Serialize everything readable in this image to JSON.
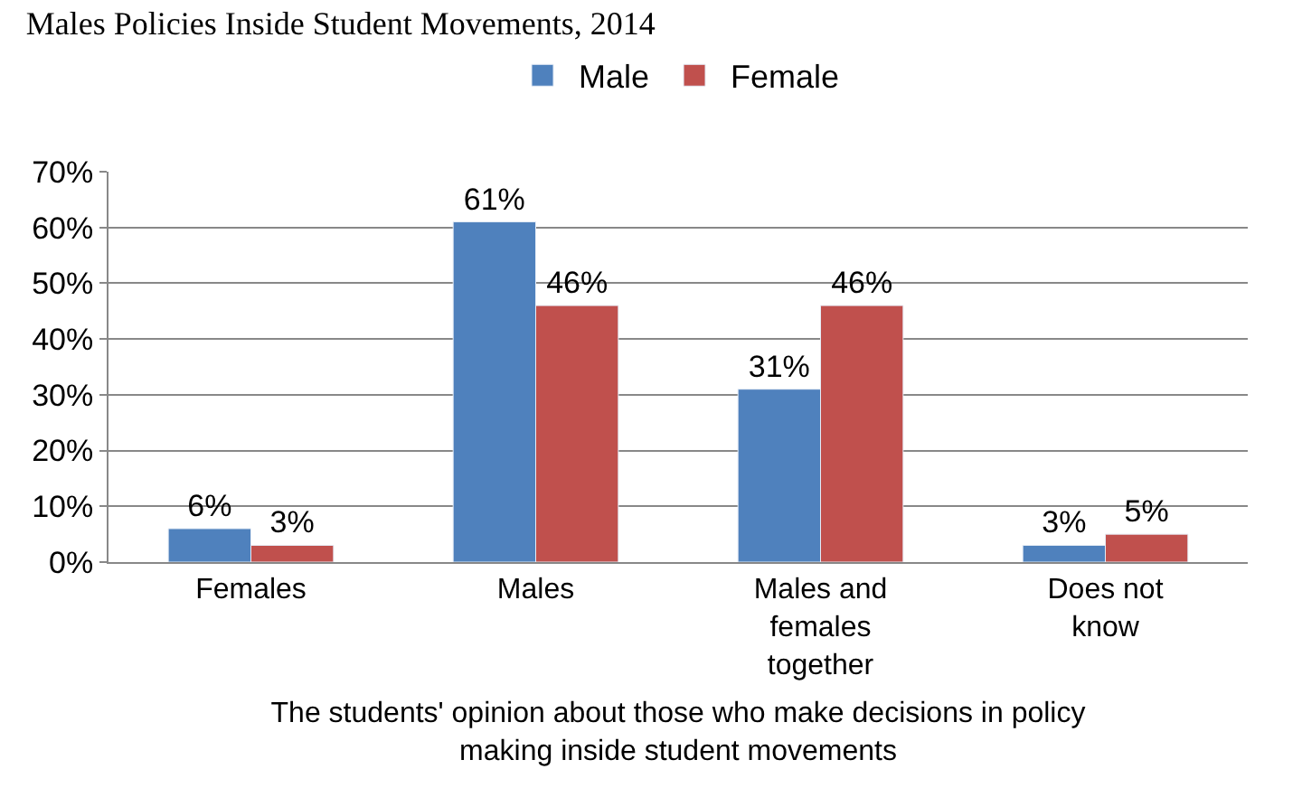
{
  "chart_data": {
    "type": "bar",
    "title": "Males Policies Inside Student Movements, 2014",
    "xlabel": "The students' opinion about those who make decisions in policy making inside student movements",
    "categories": [
      "Females",
      "Males",
      "Males and females together",
      "Does not know"
    ],
    "series": [
      {
        "name": "Male",
        "color": "#4f81bd",
        "values": [
          6,
          61,
          31,
          3
        ],
        "value_labels": [
          "6%",
          "61%",
          "31%",
          "3%"
        ]
      },
      {
        "name": "Female",
        "color": "#c0504d",
        "values": [
          3,
          46,
          46,
          5
        ],
        "value_labels": [
          "3%",
          "46%",
          "46%",
          "5%"
        ]
      }
    ],
    "ylim": [
      0,
      70
    ],
    "yticks": [
      {
        "value": 0,
        "label": "0%"
      },
      {
        "value": 10,
        "label": "10%"
      },
      {
        "value": 20,
        "label": "20%"
      },
      {
        "value": 30,
        "label": "30%"
      },
      {
        "value": 40,
        "label": "40%"
      },
      {
        "value": 50,
        "label": "50%"
      },
      {
        "value": 60,
        "label": "60%"
      },
      {
        "value": 70,
        "label": "70%"
      }
    ],
    "grid": "y",
    "legend": "top"
  }
}
